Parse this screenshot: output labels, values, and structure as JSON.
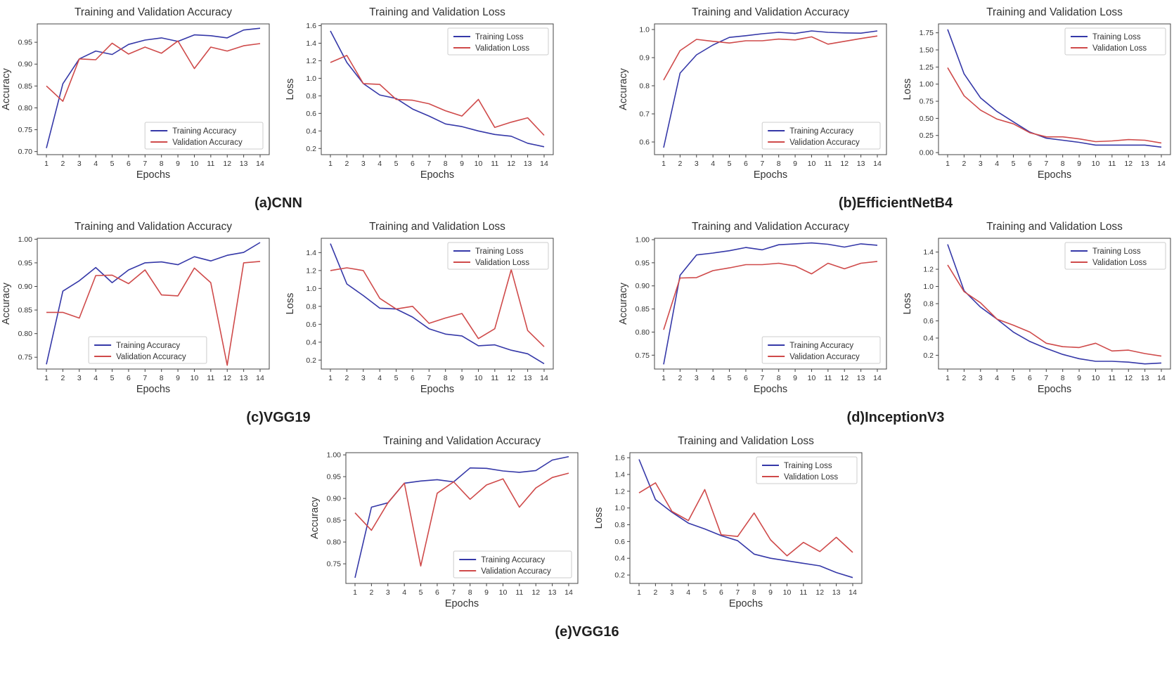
{
  "figure": {
    "captions": [
      {
        "label": "(a)CNN"
      },
      {
        "label": "(b)EfficientNetB4"
      },
      {
        "label": "(c)VGG19"
      },
      {
        "label": "(d)InceptionV3"
      },
      {
        "label": "(e)VGG16"
      }
    ]
  },
  "colors": {
    "training_line": "#3538a8",
    "validation_line": "#cf4a4a",
    "axis_text": "#333333",
    "axis_stroke": "#444444",
    "legend_border": "#cccccc",
    "legend_bg": "#ffffff"
  },
  "chart_data": [
    {
      "type": "line",
      "model": "CNN",
      "title": "Training and Validation Accuracy",
      "xlabel": "Epochs",
      "ylabel": "Accuracy",
      "xticks": [
        "1",
        "2",
        "3",
        "4",
        "5",
        "6",
        "7",
        "8",
        "9",
        "10",
        "11",
        "12",
        "13",
        "14"
      ],
      "ytick_values": [
        0.7,
        0.75,
        0.8,
        0.85,
        0.9,
        0.95
      ],
      "ytick_labels": [
        "0.70",
        "0.75",
        "0.80",
        "0.85",
        "0.90",
        "0.95"
      ],
      "ylim": [
        0.693,
        0.992
      ],
      "legend_position": "lower-right",
      "series": [
        {
          "name": "Training Accuracy",
          "color": "#3538a8",
          "values": [
            0.708,
            0.855,
            0.912,
            0.93,
            0.922,
            0.945,
            0.955,
            0.96,
            0.952,
            0.967,
            0.965,
            0.96,
            0.978,
            0.982
          ]
        },
        {
          "name": "Validation Accuracy",
          "color": "#cf4a4a",
          "values": [
            0.85,
            0.815,
            0.912,
            0.91,
            0.948,
            0.923,
            0.939,
            0.925,
            0.953,
            0.89,
            0.939,
            0.93,
            0.942,
            0.947
          ]
        }
      ]
    },
    {
      "type": "line",
      "model": "CNN",
      "title": "Training and Validation Loss",
      "xlabel": "Epochs",
      "ylabel": "Loss",
      "xticks": [
        "1",
        "2",
        "3",
        "4",
        "5",
        "6",
        "7",
        "8",
        "9",
        "10",
        "11",
        "12",
        "13",
        "14"
      ],
      "ytick_values": [
        0.2,
        0.4,
        0.6,
        0.8,
        1.0,
        1.2,
        1.4,
        1.6
      ],
      "ytick_labels": [
        "0.2",
        "0.4",
        "0.6",
        "0.8",
        "1.0",
        "1.2",
        "1.4",
        "1.6"
      ],
      "ylim": [
        0.13,
        1.62
      ],
      "legend_position": "upper-right",
      "series": [
        {
          "name": "Training Loss",
          "color": "#3538a8",
          "values": [
            1.54,
            1.18,
            0.94,
            0.81,
            0.77,
            0.65,
            0.57,
            0.48,
            0.45,
            0.4,
            0.36,
            0.34,
            0.26,
            0.22
          ]
        },
        {
          "name": "Validation Loss",
          "color": "#cf4a4a",
          "values": [
            1.18,
            1.26,
            0.94,
            0.93,
            0.76,
            0.75,
            0.71,
            0.63,
            0.57,
            0.76,
            0.44,
            0.5,
            0.55,
            0.35
          ]
        }
      ]
    },
    {
      "type": "line",
      "model": "EfficientNetB4",
      "title": "Training and Validation Accuracy",
      "xlabel": "Epochs",
      "ylabel": "Accuracy",
      "xticks": [
        "1",
        "2",
        "3",
        "4",
        "5",
        "6",
        "7",
        "8",
        "9",
        "10",
        "11",
        "12",
        "13",
        "14"
      ],
      "ytick_values": [
        0.6,
        0.7,
        0.8,
        0.9,
        1.0
      ],
      "ytick_labels": [
        "0.6",
        "0.7",
        "0.8",
        "0.9",
        "1.0"
      ],
      "ylim": [
        0.555,
        1.02
      ],
      "legend_position": "lower-right",
      "series": [
        {
          "name": "Training Accuracy",
          "color": "#3538a8",
          "values": [
            0.58,
            0.845,
            0.91,
            0.945,
            0.972,
            0.978,
            0.985,
            0.99,
            0.986,
            0.995,
            0.99,
            0.988,
            0.987,
            0.995
          ]
        },
        {
          "name": "Validation Accuracy",
          "color": "#cf4a4a",
          "values": [
            0.82,
            0.925,
            0.965,
            0.958,
            0.952,
            0.96,
            0.96,
            0.966,
            0.963,
            0.974,
            0.948,
            0.958,
            0.968,
            0.977
          ]
        }
      ]
    },
    {
      "type": "line",
      "model": "EfficientNetB4",
      "title": "Training and Validation Loss",
      "xlabel": "Epochs",
      "ylabel": "Loss",
      "xticks": [
        "1",
        "2",
        "3",
        "4",
        "5",
        "6",
        "7",
        "8",
        "9",
        "10",
        "11",
        "12",
        "13",
        "14"
      ],
      "ytick_values": [
        0.0,
        0.25,
        0.5,
        0.75,
        1.0,
        1.25,
        1.5,
        1.75
      ],
      "ytick_labels": [
        "0.00",
        "0.25",
        "0.50",
        "0.75",
        "1.00",
        "1.25",
        "1.50",
        "1.75"
      ],
      "ylim": [
        -0.03,
        1.88
      ],
      "legend_position": "upper-right",
      "series": [
        {
          "name": "Training Loss",
          "color": "#3538a8",
          "values": [
            1.8,
            1.15,
            0.8,
            0.6,
            0.45,
            0.3,
            0.21,
            0.18,
            0.15,
            0.11,
            0.11,
            0.11,
            0.11,
            0.08
          ]
        },
        {
          "name": "Validation Loss",
          "color": "#cf4a4a",
          "values": [
            1.24,
            0.83,
            0.62,
            0.49,
            0.42,
            0.29,
            0.23,
            0.23,
            0.2,
            0.16,
            0.17,
            0.19,
            0.18,
            0.14
          ]
        }
      ]
    },
    {
      "type": "line",
      "model": "VGG19",
      "title": "Training and Validation Accuracy",
      "xlabel": "Epochs",
      "ylabel": "Accuracy",
      "xticks": [
        "1",
        "2",
        "3",
        "4",
        "5",
        "6",
        "7",
        "8",
        "9",
        "10",
        "11",
        "12",
        "13",
        "14"
      ],
      "ytick_values": [
        0.75,
        0.8,
        0.85,
        0.9,
        0.95,
        1.0
      ],
      "ytick_labels": [
        "0.75",
        "0.80",
        "0.85",
        "0.90",
        "0.95",
        "1.00"
      ],
      "ylim": [
        0.725,
        1.002
      ],
      "legend_position": "lower-center",
      "series": [
        {
          "name": "Training Accuracy",
          "color": "#3538a8",
          "values": [
            0.735,
            0.89,
            0.912,
            0.94,
            0.908,
            0.935,
            0.95,
            0.952,
            0.946,
            0.963,
            0.954,
            0.966,
            0.972,
            0.993
          ]
        },
        {
          "name": "Validation Accuracy",
          "color": "#cf4a4a",
          "values": [
            0.845,
            0.845,
            0.833,
            0.923,
            0.924,
            0.906,
            0.935,
            0.882,
            0.88,
            0.939,
            0.908,
            0.733,
            0.95,
            0.953
          ]
        }
      ]
    },
    {
      "type": "line",
      "model": "VGG19",
      "title": "Training and Validation Loss",
      "xlabel": "Epochs",
      "ylabel": "Loss",
      "xticks": [
        "1",
        "2",
        "3",
        "4",
        "5",
        "6",
        "7",
        "8",
        "9",
        "10",
        "11",
        "12",
        "13",
        "14"
      ],
      "ytick_values": [
        0.2,
        0.4,
        0.6,
        0.8,
        1.0,
        1.2,
        1.4
      ],
      "ytick_labels": [
        "0.2",
        "0.4",
        "0.6",
        "0.8",
        "1.0",
        "1.2",
        "1.4"
      ],
      "ylim": [
        0.1,
        1.56
      ],
      "legend_position": "upper-right",
      "series": [
        {
          "name": "Training Loss",
          "color": "#3538a8",
          "values": [
            1.5,
            1.05,
            0.92,
            0.78,
            0.77,
            0.68,
            0.55,
            0.49,
            0.47,
            0.36,
            0.37,
            0.31,
            0.27,
            0.16
          ]
        },
        {
          "name": "Validation Loss",
          "color": "#cf4a4a",
          "values": [
            1.2,
            1.23,
            1.2,
            0.89,
            0.77,
            0.8,
            0.61,
            0.67,
            0.72,
            0.44,
            0.55,
            1.21,
            0.53,
            0.35
          ]
        }
      ]
    },
    {
      "type": "line",
      "model": "InceptionV3",
      "title": "Training and Validation Accuracy",
      "xlabel": "Epochs",
      "ylabel": "Accuracy",
      "xticks": [
        "1",
        "2",
        "3",
        "4",
        "5",
        "6",
        "7",
        "8",
        "9",
        "10",
        "11",
        "12",
        "13",
        "14"
      ],
      "ytick_values": [
        0.75,
        0.8,
        0.85,
        0.9,
        0.95,
        1.0
      ],
      "ytick_labels": [
        "0.75",
        "0.80",
        "0.85",
        "0.90",
        "0.95",
        "1.00"
      ],
      "ylim": [
        0.72,
        1.003
      ],
      "legend_position": "lower-right",
      "series": [
        {
          "name": "Training Accuracy",
          "color": "#3538a8",
          "values": [
            0.73,
            0.923,
            0.967,
            0.971,
            0.976,
            0.983,
            0.978,
            0.989,
            0.991,
            0.993,
            0.99,
            0.984,
            0.991,
            0.988
          ]
        },
        {
          "name": "Validation Accuracy",
          "color": "#cf4a4a",
          "values": [
            0.805,
            0.917,
            0.918,
            0.933,
            0.939,
            0.946,
            0.946,
            0.949,
            0.943,
            0.926,
            0.949,
            0.937,
            0.949,
            0.953
          ]
        }
      ]
    },
    {
      "type": "line",
      "model": "InceptionV3",
      "title": "Training and Validation Loss",
      "xlabel": "Epochs",
      "ylabel": "Loss",
      "xticks": [
        "1",
        "2",
        "3",
        "4",
        "5",
        "6",
        "7",
        "8",
        "9",
        "10",
        "11",
        "12",
        "13",
        "14"
      ],
      "ytick_values": [
        0.2,
        0.4,
        0.6,
        0.8,
        1.0,
        1.2,
        1.4
      ],
      "ytick_labels": [
        "0.2",
        "0.4",
        "0.6",
        "0.8",
        "1.0",
        "1.2",
        "1.4"
      ],
      "ylim": [
        0.04,
        1.56
      ],
      "legend_position": "upper-right",
      "series": [
        {
          "name": "Training Loss",
          "color": "#3538a8",
          "values": [
            1.49,
            0.95,
            0.76,
            0.62,
            0.47,
            0.36,
            0.28,
            0.21,
            0.16,
            0.13,
            0.13,
            0.12,
            0.1,
            0.11
          ]
        },
        {
          "name": "Validation Loss",
          "color": "#cf4a4a",
          "values": [
            1.25,
            0.94,
            0.81,
            0.62,
            0.55,
            0.47,
            0.34,
            0.3,
            0.29,
            0.34,
            0.25,
            0.26,
            0.22,
            0.19
          ]
        }
      ]
    },
    {
      "type": "line",
      "model": "VGG16",
      "title": "Training and Validation Accuracy",
      "xlabel": "Epochs",
      "ylabel": "Accuracy",
      "xticks": [
        "1",
        "2",
        "3",
        "4",
        "5",
        "6",
        "7",
        "8",
        "9",
        "10",
        "11",
        "12",
        "13",
        "14"
      ],
      "ytick_values": [
        0.75,
        0.8,
        0.85,
        0.9,
        0.95,
        1.0
      ],
      "ytick_labels": [
        "0.75",
        "0.80",
        "0.85",
        "0.90",
        "0.95",
        "1.00"
      ],
      "ylim": [
        0.705,
        1.005
      ],
      "legend_position": "lower-right",
      "series": [
        {
          "name": "Training Accuracy",
          "color": "#3538a8",
          "values": [
            0.718,
            0.88,
            0.89,
            0.935,
            0.94,
            0.943,
            0.938,
            0.97,
            0.969,
            0.963,
            0.96,
            0.964,
            0.988,
            0.996
          ]
        },
        {
          "name": "Validation Accuracy",
          "color": "#cf4a4a",
          "values": [
            0.867,
            0.827,
            0.89,
            0.935,
            0.745,
            0.912,
            0.938,
            0.898,
            0.931,
            0.945,
            0.88,
            0.924,
            0.948,
            0.958
          ]
        }
      ]
    },
    {
      "type": "line",
      "model": "VGG16",
      "title": "Training and Validation Loss",
      "xlabel": "Epochs",
      "ylabel": "Loss",
      "xticks": [
        "1",
        "2",
        "3",
        "4",
        "5",
        "6",
        "7",
        "8",
        "9",
        "10",
        "11",
        "12",
        "13",
        "14"
      ],
      "ytick_values": [
        0.2,
        0.4,
        0.6,
        0.8,
        1.0,
        1.2,
        1.4,
        1.6
      ],
      "ytick_labels": [
        "0.2",
        "0.4",
        "0.6",
        "0.8",
        "1.0",
        "1.2",
        "1.4",
        "1.6"
      ],
      "ylim": [
        0.1,
        1.66
      ],
      "legend_position": "upper-right",
      "series": [
        {
          "name": "Training Loss",
          "color": "#3538a8",
          "values": [
            1.58,
            1.1,
            0.95,
            0.82,
            0.75,
            0.67,
            0.61,
            0.45,
            0.4,
            0.37,
            0.34,
            0.31,
            0.23,
            0.17
          ]
        },
        {
          "name": "Validation Loss",
          "color": "#cf4a4a",
          "values": [
            1.18,
            1.3,
            0.96,
            0.85,
            1.22,
            0.68,
            0.66,
            0.94,
            0.62,
            0.43,
            0.59,
            0.48,
            0.65,
            0.47
          ]
        }
      ]
    }
  ]
}
